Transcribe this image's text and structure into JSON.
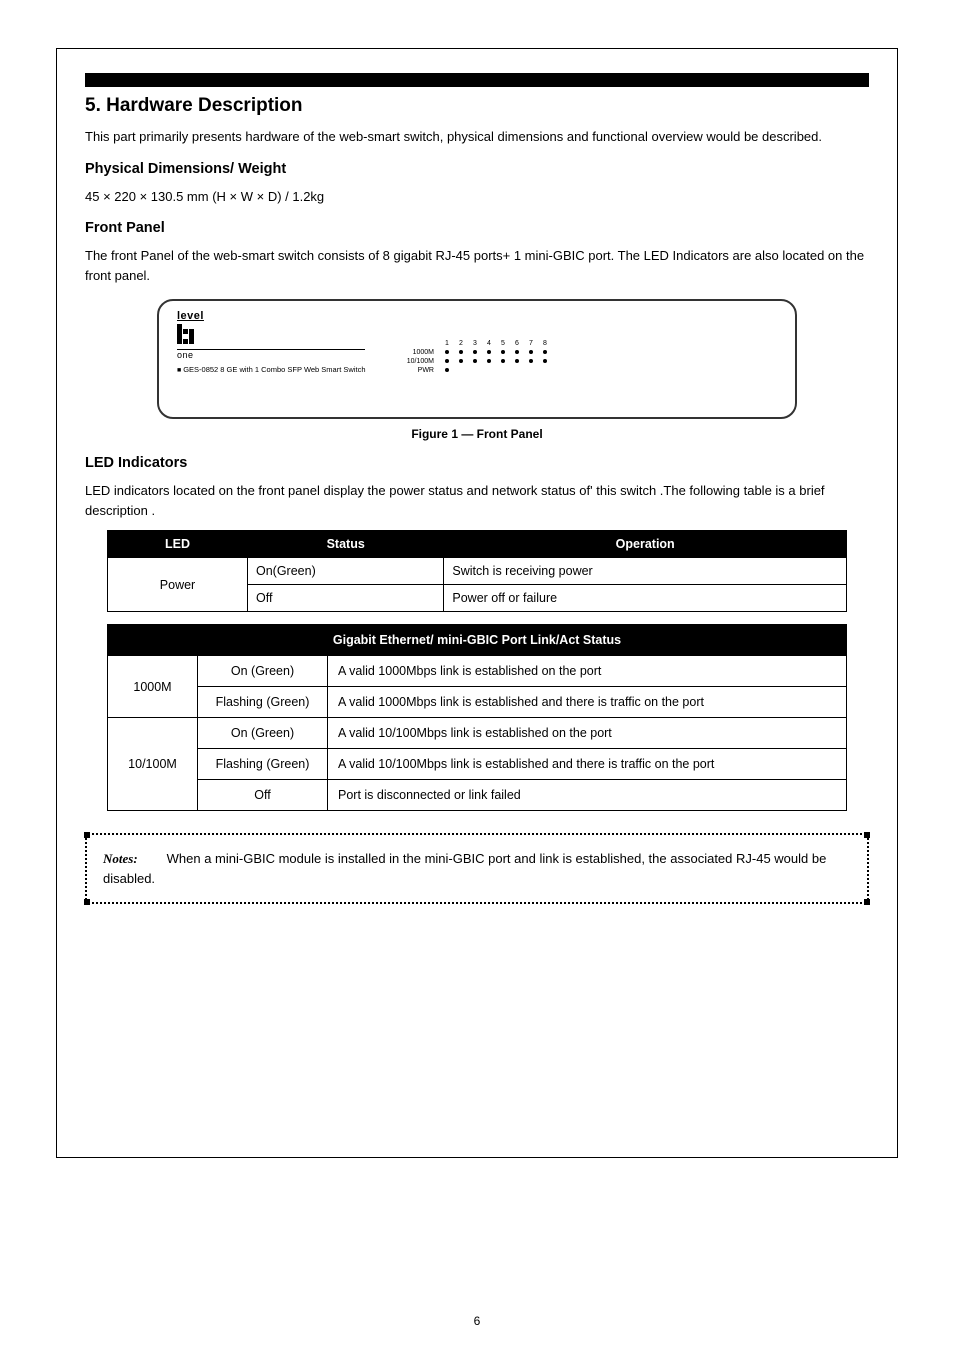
{
  "header": {
    "title": "5. Hardware Description"
  },
  "intro": "This part primarily presents hardware of the web-smart switch, physical dimensions and functional overview would be described.",
  "physical": {
    "title": "Physical Dimensions/ Weight",
    "text": "45 × 220 × 130.5 mm (H × W × D) / 1.2kg"
  },
  "frontpanel": {
    "title": "Front Panel",
    "body": "The front Panel of the web-smart switch consists of 8 gigabit RJ-45 ports+ 1 mini-GBIC port. The LED Indicators are also located on the front panel.",
    "caption": "Figure 1 — Front Panel",
    "brand": {
      "level": "level",
      "one": "one",
      "model": "GES-0852   8 GE with 1 Combo SFP Web Smart Switch"
    },
    "led_labels": {
      "top": "1000M",
      "middle": "10/100M",
      "bottom": "PWR"
    },
    "port_numbers": [
      "1",
      "2",
      "3",
      "4",
      "5",
      "6",
      "7",
      "8"
    ]
  },
  "led_section": {
    "title": "LED Indicators",
    "intro": "LED indicators located on the front panel display the power status and network status of' this switch .The following table is a brief description ."
  },
  "power_table": {
    "headers": [
      "LED",
      "Status",
      "Operation"
    ],
    "led_name": "Power",
    "rows": [
      {
        "status": "On(Green)",
        "op": "Switch is receiving power"
      },
      {
        "status": "Off",
        "op": "Power off or failure"
      }
    ]
  },
  "link_table": {
    "header": "Gigabit Ethernet/ mini-GBIC Port Link/Act Status",
    "rows": [
      {
        "led": "1000M",
        "items": [
          {
            "status": "On (Green)",
            "op": "A valid 1000Mbps link is established on the port"
          },
          {
            "status": "Flashing (Green)",
            "op": "A valid 1000Mbps link is established and there is traffic on the port"
          }
        ]
      },
      {
        "led": "10/100M",
        "items": [
          {
            "status": "On (Green)",
            "op": "A valid 10/100Mbps link is established on the port"
          },
          {
            "status": "Flashing (Green)",
            "op": "A valid 10/100Mbps link is established and there is traffic on the port"
          },
          {
            "status": "Off",
            "op": "Port is disconnected or link failed"
          }
        ]
      }
    ]
  },
  "note": {
    "label": "Notes:",
    "text": "When a mini-GBIC module is installed in the mini-GBIC port and link is established, the associated RJ-45 would be disabled."
  },
  "page_number": "6",
  "colors": {
    "black": "#000000",
    "white": "#ffffff"
  }
}
